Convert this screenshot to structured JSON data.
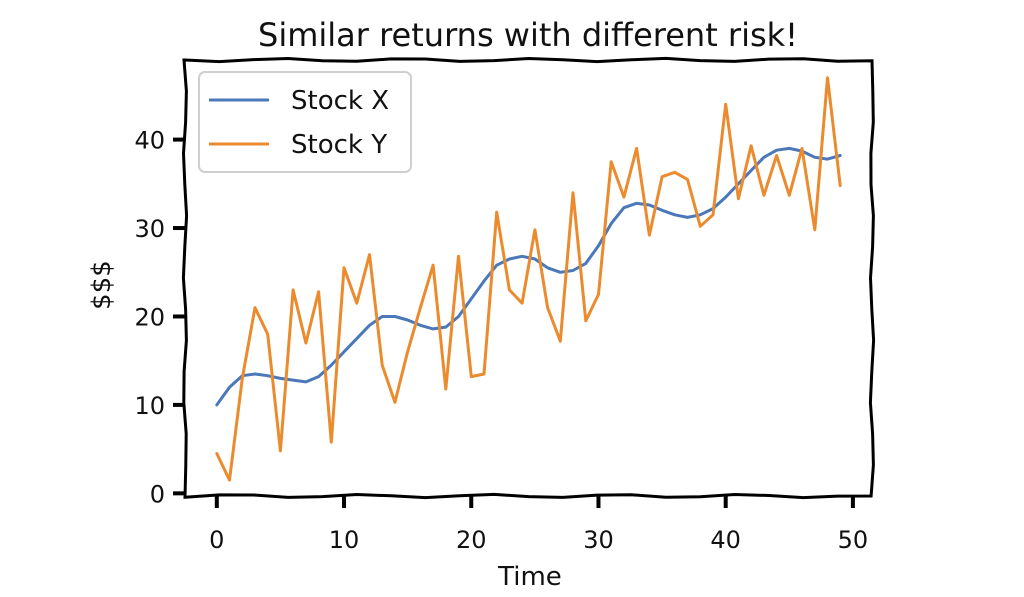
{
  "chart_data": {
    "type": "line",
    "title": "Similar returns with different risk!",
    "xlabel": "Time",
    "ylabel": "$$$",
    "xlim": [
      -2.5,
      51.5
    ],
    "ylim": [
      -0.3,
      49
    ],
    "xticks": [
      0,
      10,
      20,
      30,
      40,
      50
    ],
    "yticks": [
      0,
      10,
      20,
      30,
      40
    ],
    "grid": false,
    "legend_position": "top-left",
    "series": [
      {
        "name": "Stock X",
        "color": "#4a78b8",
        "x": [
          0,
          1,
          2,
          3,
          4,
          5,
          6,
          7,
          8,
          9,
          10,
          11,
          12,
          13,
          14,
          15,
          16,
          17,
          18,
          19,
          20,
          21,
          22,
          23,
          24,
          25,
          26,
          27,
          28,
          29,
          30,
          31,
          32,
          33,
          34,
          35,
          36,
          37,
          38,
          39,
          40,
          41,
          42,
          43,
          44,
          45,
          46,
          47,
          48,
          49
        ],
        "y": [
          10,
          12,
          13.3,
          13.5,
          13.3,
          13,
          12.8,
          12.6,
          13.2,
          14.5,
          16,
          17.5,
          19,
          20,
          20,
          19.6,
          19,
          18.6,
          18.8,
          20,
          22,
          24,
          25.8,
          26.5,
          26.8,
          26.5,
          25.5,
          25,
          25.2,
          26,
          28,
          30.5,
          32.3,
          32.8,
          32.6,
          32,
          31.5,
          31.2,
          31.5,
          32.2,
          33.5,
          35,
          36.5,
          38,
          38.8,
          39,
          38.7,
          38,
          37.8,
          38.2
        ]
      },
      {
        "name": "Stock Y",
        "color": "#ec8a2e",
        "x": [
          0,
          1,
          2,
          3,
          4,
          5,
          6,
          7,
          8,
          9,
          10,
          11,
          12,
          13,
          14,
          15,
          16,
          17,
          18,
          19,
          20,
          21,
          22,
          23,
          24,
          25,
          26,
          27,
          28,
          29,
          30,
          31,
          32,
          33,
          34,
          35,
          36,
          37,
          38,
          39,
          40,
          41,
          42,
          43,
          44,
          45,
          46,
          47,
          48,
          49
        ],
        "y": [
          4.5,
          1.5,
          13,
          21,
          18,
          4.8,
          23,
          17,
          22.8,
          5.8,
          25.5,
          21.5,
          27,
          14.5,
          10.3,
          16,
          21,
          25.8,
          11.8,
          26.8,
          13.2,
          13.5,
          31.8,
          23,
          21.5,
          29.8,
          21,
          17.2,
          34,
          19.5,
          22.5,
          37.5,
          33.5,
          39,
          29.2,
          35.8,
          36.3,
          35.5,
          30.2,
          31.5,
          44,
          33.3,
          39.3,
          33.7,
          38.2,
          33.7,
          39,
          29.8,
          47,
          34.8
        ]
      }
    ]
  }
}
